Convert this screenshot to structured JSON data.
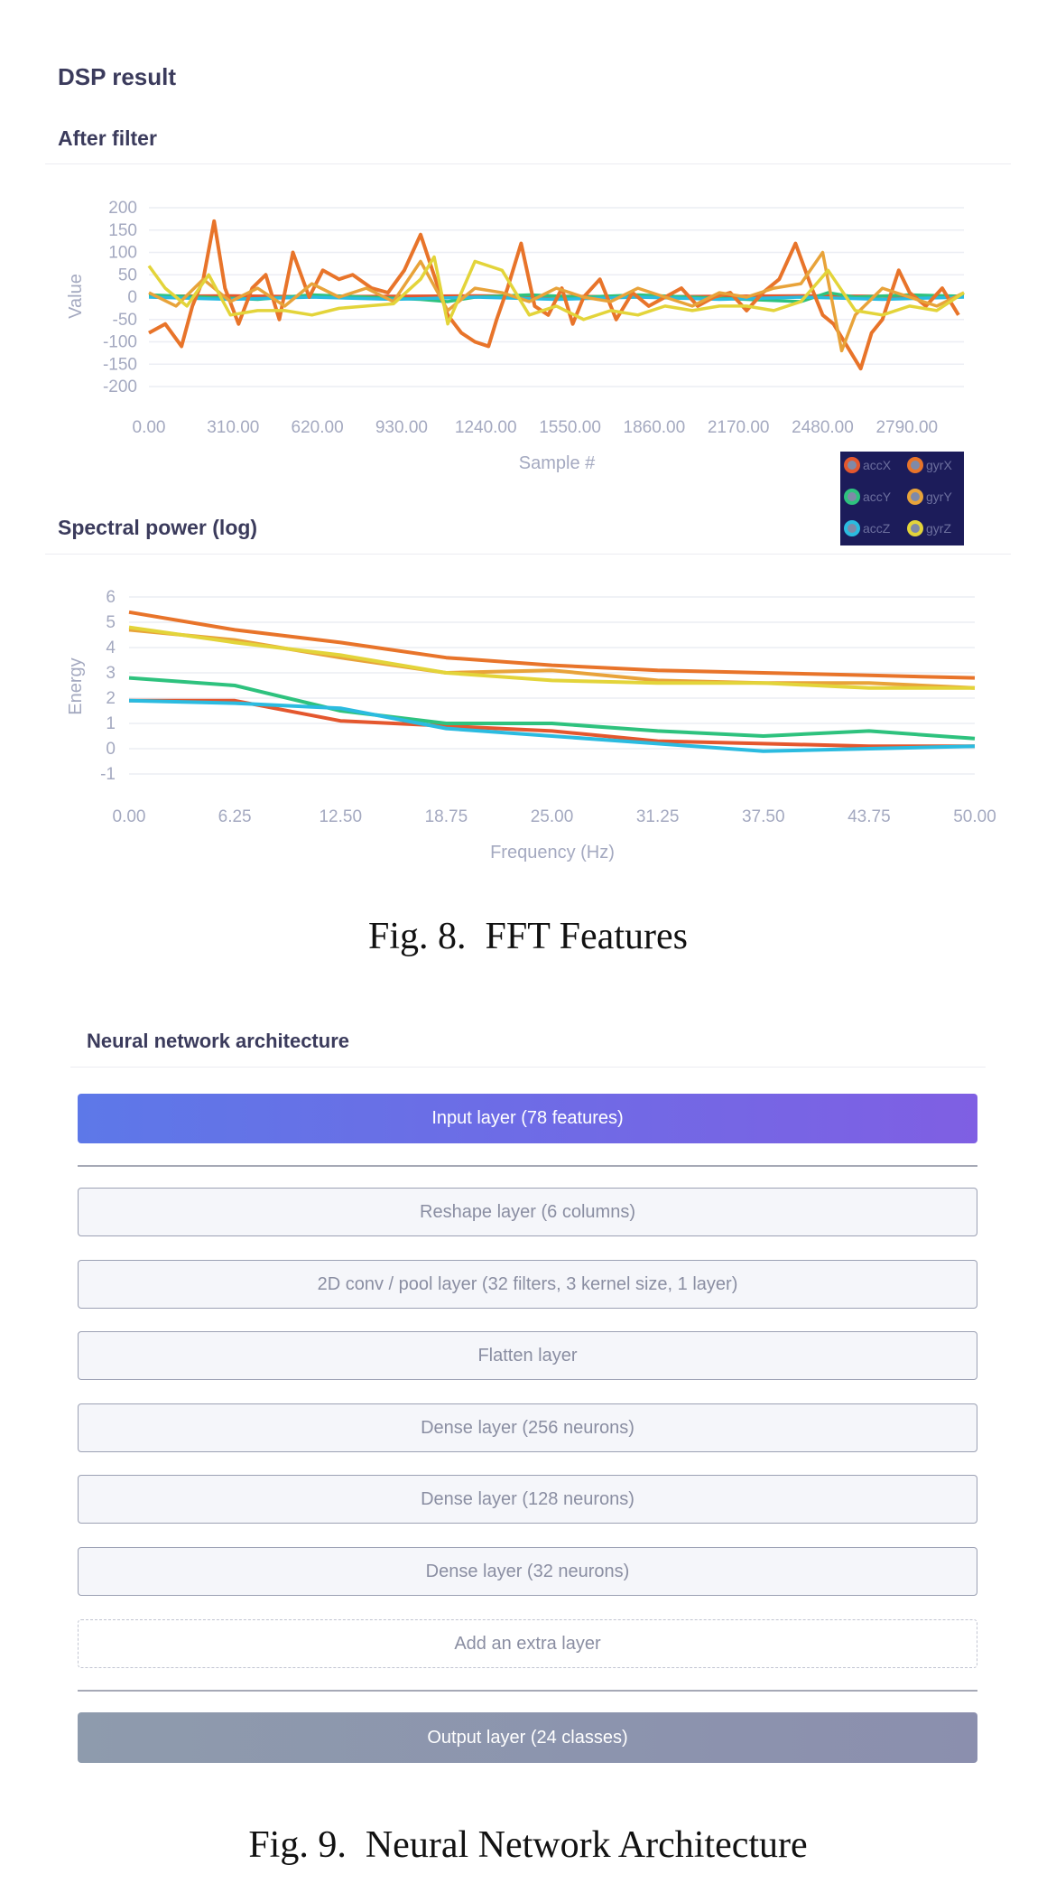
{
  "dsp": {
    "title": "DSP result",
    "after_filter_title": "After filter",
    "spectral_title": "Spectral power (log)"
  },
  "legend": [
    {
      "label": "accX",
      "color": "#e4572e"
    },
    {
      "label": "gyrX",
      "color": "#e8742a"
    },
    {
      "label": "accY",
      "color": "#2ec27e"
    },
    {
      "label": "gyrY",
      "color": "#e8a33a"
    },
    {
      "label": "accZ",
      "color": "#2bbbe0"
    },
    {
      "label": "gyrZ",
      "color": "#e3d43a"
    }
  ],
  "chart_data": [
    {
      "type": "line",
      "xlabel": "Sample #",
      "ylabel": "Value",
      "ylim": [
        -200,
        200
      ],
      "yticks": [
        "200",
        "150",
        "100",
        "50",
        "0",
        "-50",
        "-100",
        "-150",
        "-200"
      ],
      "xticks": [
        "0.00",
        "310.00",
        "620.00",
        "930.00",
        "1240.00",
        "1550.00",
        "1860.00",
        "2170.00",
        "2480.00",
        "2790.00"
      ],
      "xlim": [
        0,
        3000
      ],
      "grid": true,
      "legend_position": "bottom-right",
      "series": [
        {
          "name": "accX",
          "color": "#e4572e",
          "x": [
            0,
            300,
            600,
            900,
            1200,
            1500,
            1800,
            2100,
            2400,
            2700,
            3000
          ],
          "y": [
            2,
            3,
            1,
            2,
            3,
            2,
            1,
            2,
            3,
            2,
            2
          ]
        },
        {
          "name": "accY",
          "color": "#2ec27e",
          "x": [
            0,
            200,
            400,
            600,
            800,
            1000,
            1100,
            1200,
            1400,
            1600,
            1800,
            2000,
            2200,
            2400,
            2500,
            2600,
            2800,
            3000
          ],
          "y": [
            5,
            0,
            -5,
            5,
            0,
            -5,
            -10,
            0,
            5,
            0,
            5,
            0,
            -5,
            -10,
            10,
            0,
            5,
            2
          ]
        },
        {
          "name": "accZ",
          "color": "#2bbbe0",
          "x": [
            0,
            300,
            600,
            900,
            1200,
            1500,
            1800,
            2100,
            2400,
            2700,
            3000
          ],
          "y": [
            0,
            -5,
            0,
            -5,
            0,
            -5,
            0,
            -5,
            0,
            -5,
            0
          ]
        },
        {
          "name": "gyrX",
          "color": "#e8742a",
          "x": [
            0,
            60,
            120,
            160,
            200,
            240,
            280,
            330,
            380,
            430,
            480,
            530,
            590,
            640,
            700,
            750,
            820,
            880,
            940,
            1000,
            1060,
            1100,
            1150,
            1200,
            1250,
            1280,
            1320,
            1370,
            1420,
            1470,
            1520,
            1560,
            1600,
            1660,
            1720,
            1780,
            1840,
            1900,
            1960,
            2020,
            2080,
            2140,
            2200,
            2260,
            2320,
            2380,
            2440,
            2480,
            2520,
            2560,
            2620,
            2660,
            2700,
            2760,
            2800,
            2860,
            2920,
            2980
          ],
          "y": [
            -80,
            -60,
            -110,
            -20,
            40,
            170,
            20,
            -60,
            20,
            50,
            -50,
            100,
            0,
            60,
            40,
            50,
            20,
            10,
            60,
            140,
            30,
            -40,
            -80,
            -100,
            -110,
            -50,
            20,
            120,
            -20,
            -40,
            20,
            -60,
            0,
            40,
            -50,
            10,
            -20,
            0,
            20,
            -20,
            0,
            10,
            -30,
            10,
            40,
            120,
            20,
            -40,
            -60,
            -100,
            -160,
            -80,
            -50,
            60,
            10,
            -20,
            20,
            -40
          ]
        },
        {
          "name": "gyrY",
          "color": "#e8a33a",
          "x": [
            0,
            100,
            200,
            300,
            400,
            500,
            600,
            700,
            800,
            900,
            1000,
            1100,
            1200,
            1300,
            1400,
            1500,
            1600,
            1700,
            1800,
            1900,
            2000,
            2100,
            2200,
            2300,
            2400,
            2480,
            2550,
            2600,
            2700,
            2800,
            2900,
            3000
          ],
          "y": [
            10,
            -20,
            40,
            -10,
            20,
            -20,
            30,
            0,
            20,
            -10,
            80,
            -30,
            20,
            10,
            -10,
            20,
            0,
            -10,
            20,
            0,
            -20,
            10,
            0,
            20,
            30,
            100,
            -120,
            -40,
            20,
            0,
            -20,
            10
          ]
        },
        {
          "name": "gyrZ",
          "color": "#e3d43a",
          "x": [
            0,
            60,
            140,
            220,
            300,
            400,
            500,
            600,
            700,
            800,
            900,
            1000,
            1050,
            1100,
            1200,
            1300,
            1400,
            1500,
            1600,
            1700,
            1800,
            1900,
            2000,
            2100,
            2200,
            2300,
            2400,
            2500,
            2600,
            2700,
            2800,
            2900,
            3000
          ],
          "y": [
            70,
            20,
            -20,
            50,
            -40,
            -30,
            -30,
            -40,
            -25,
            -20,
            -15,
            40,
            90,
            -60,
            80,
            60,
            -40,
            -20,
            -50,
            -30,
            -40,
            -20,
            -30,
            -20,
            -20,
            -30,
            -10,
            60,
            -30,
            -40,
            -20,
            -30,
            10
          ]
        }
      ]
    },
    {
      "type": "line",
      "xlabel": "Frequency (Hz)",
      "ylabel": "Energy",
      "ylim": [
        -1,
        6
      ],
      "yticks": [
        "6",
        "5",
        "4",
        "3",
        "2",
        "1",
        "0",
        "-1"
      ],
      "x": [
        0,
        6.25,
        12.5,
        18.75,
        25,
        31.25,
        37.5,
        43.75,
        50
      ],
      "xticks": [
        "0.00",
        "6.25",
        "12.50",
        "18.75",
        "25.00",
        "31.25",
        "37.50",
        "43.75",
        "50.00"
      ],
      "grid": true,
      "series": [
        {
          "name": "accX",
          "color": "#e4572e",
          "values": [
            1.9,
            1.9,
            1.1,
            0.9,
            0.7,
            0.3,
            0.2,
            0.1,
            0.1
          ]
        },
        {
          "name": "accY",
          "color": "#2ec27e",
          "values": [
            2.8,
            2.5,
            1.5,
            1.0,
            1.0,
            0.7,
            0.5,
            0.7,
            0.4
          ]
        },
        {
          "name": "accZ",
          "color": "#2bbbe0",
          "values": [
            1.9,
            1.8,
            1.6,
            0.8,
            0.5,
            0.2,
            -0.1,
            0.0,
            0.1
          ]
        },
        {
          "name": "gyrX",
          "color": "#e8742a",
          "values": [
            5.4,
            4.7,
            4.2,
            3.6,
            3.3,
            3.1,
            3.0,
            2.9,
            2.8
          ]
        },
        {
          "name": "gyrY",
          "color": "#e8a33a",
          "values": [
            4.7,
            4.3,
            3.6,
            3.0,
            3.1,
            2.7,
            2.6,
            2.6,
            2.4
          ]
        },
        {
          "name": "gyrZ",
          "color": "#e3d43a",
          "values": [
            4.8,
            4.2,
            3.7,
            3.0,
            2.7,
            2.6,
            2.6,
            2.4,
            2.4
          ]
        }
      ]
    }
  ],
  "captions": {
    "fig8": "Fig. 8.  FFT Features",
    "fig9": "Fig. 9.  Neural Network Architecture"
  },
  "nn": {
    "title": "Neural network architecture",
    "input_layer": "Input layer (78 features)",
    "layers": [
      "Reshape layer (6 columns)",
      "2D conv / pool layer (32 filters, 3 kernel size, 1 layer)",
      "Flatten layer",
      "Dense layer (256 neurons)",
      "Dense layer (128 neurons)",
      "Dense layer (32 neurons)"
    ],
    "add_layer": "Add an extra layer",
    "output_layer": "Output layer (24 classes)"
  }
}
